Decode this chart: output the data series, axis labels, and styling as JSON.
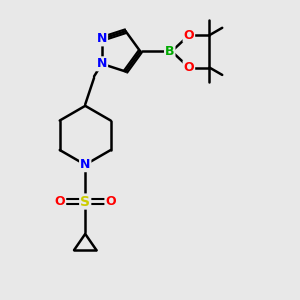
{
  "background_color": "#e8e8e8",
  "bond_color": "#000000",
  "bond_width": 1.8,
  "atom_colors": {
    "N": "#0000ff",
    "O": "#ff0000",
    "S": "#cccc00",
    "B": "#00aa00",
    "C": "#000000"
  },
  "font_size": 9,
  "fig_size": [
    3.0,
    3.0
  ],
  "dpi": 100
}
